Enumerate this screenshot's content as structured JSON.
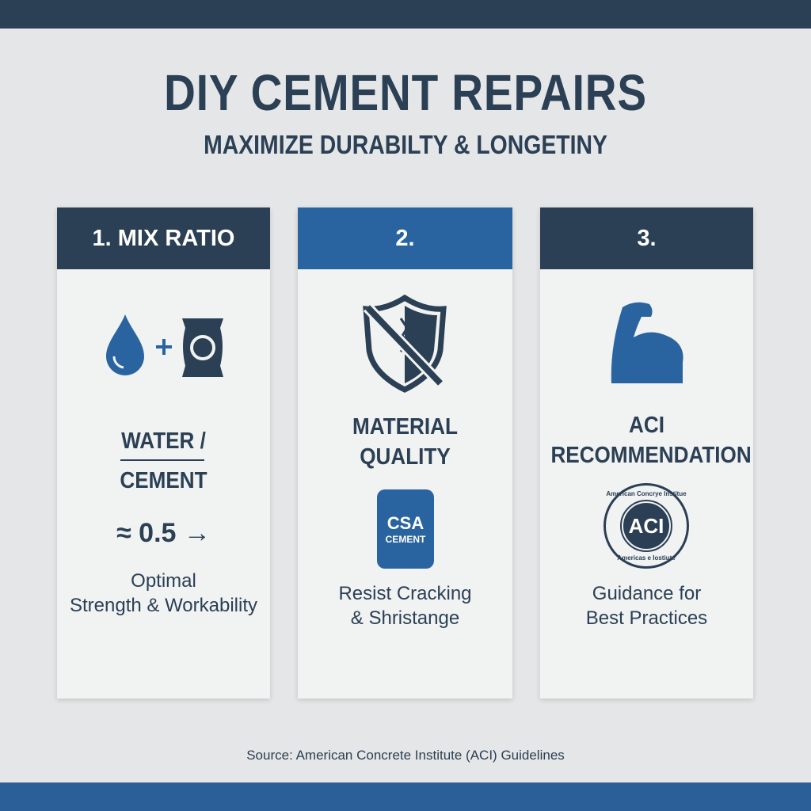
{
  "title": "DIY CEMENT REPAIRS",
  "subtitle": "MAXIMIZE DURABILTY & LONGETINY",
  "cards": [
    {
      "header": "1. MIX RATIO",
      "icons": [
        "water-drop-icon",
        "plus-icon",
        "cement-bag-icon"
      ],
      "fraction_top": "WATER /",
      "fraction_bottom": "CEMENT",
      "ratio": "≈ 0.5",
      "arrow": "→",
      "body_lines": [
        "Optimal",
        "Strength & Workability"
      ]
    },
    {
      "header": "2.",
      "icons": [
        "cracked-shield-icon",
        "csa-cement-bag-icon"
      ],
      "heading_lines": [
        "MATERIAL",
        "QUALITY"
      ],
      "bag_line1": "CSA",
      "bag_line2": "CEMENT",
      "body_lines": [
        "Resist Cracking",
        "& Shristange"
      ]
    },
    {
      "header": "3.",
      "icons": [
        "flexed-arm-icon",
        "aci-seal-icon"
      ],
      "heading_lines": [
        "ACI",
        "RECOMMENDATION"
      ],
      "seal_text": "ACI",
      "seal_ring_top": "American Concrye Institue",
      "seal_ring_bottom": "Americas e Iostiute",
      "body_lines": [
        "Guidance for",
        "Best Practices"
      ]
    }
  ],
  "source": "Source: American Concrete Institute (ACI) Guidelines",
  "colors": {
    "navy": "#2b3f55",
    "blue": "#2a64a0",
    "background": "#e5e6e7"
  }
}
